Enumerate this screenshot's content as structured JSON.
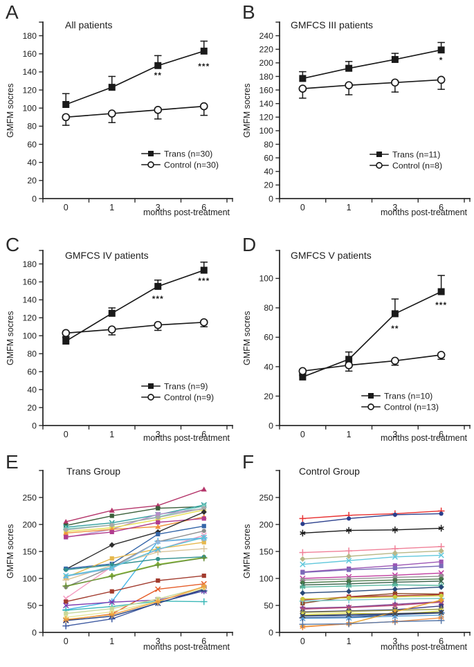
{
  "figure": {
    "background": "#ffffff",
    "text_color": "#1d1d1d",
    "axis_color": "#2a2a2a"
  },
  "chart_data": [
    {
      "letter": "A",
      "title": "All patients",
      "type": "line",
      "xlabel": "months post-treatment",
      "ylabel": "GMFM socres",
      "categories": [
        "0",
        "1",
        "3",
        "6"
      ],
      "ylim": [
        0,
        195
      ],
      "yticks": [
        0,
        20,
        40,
        60,
        80,
        100,
        120,
        140,
        160,
        180
      ],
      "grid": false,
      "legend_position": "inside lower right",
      "legend_xy": [
        205,
        222
      ],
      "series": [
        {
          "name": "Trans (n=30)",
          "color": "#1a1a1a",
          "marker": "square",
          "values": [
            104,
            123,
            147,
            163
          ],
          "err": [
            12,
            12,
            11,
            11
          ],
          "err_dir": "up"
        },
        {
          "name": "Control (n=30)",
          "color": "#1a1a1a",
          "marker": "circle-open",
          "values": [
            90,
            94,
            98,
            102
          ],
          "err": [
            9,
            10,
            10,
            10
          ],
          "err_dir": "down"
        }
      ],
      "annotations": [
        {
          "text": "**",
          "ci": 2,
          "y": 133
        },
        {
          "text": "***",
          "ci": 3,
          "y": 143
        }
      ]
    },
    {
      "letter": "B",
      "title": "GMFCS III patients",
      "type": "line",
      "xlabel": "months post-treatment",
      "ylabel": "GMFM socres",
      "categories": [
        "0",
        "1",
        "3",
        "6"
      ],
      "ylim": [
        0,
        260
      ],
      "yticks": [
        0,
        20,
        40,
        60,
        80,
        100,
        120,
        140,
        160,
        180,
        200,
        220,
        240
      ],
      "grid": false,
      "legend_position": "inside lower right",
      "legend_xy": [
        193,
        223
      ],
      "series": [
        {
          "name": "Trans (n=11)",
          "color": "#1a1a1a",
          "marker": "square",
          "values": [
            177,
            192,
            205,
            219
          ],
          "err": [
            10,
            10,
            9,
            11
          ],
          "err_dir": "up"
        },
        {
          "name": "Control (n=8)",
          "color": "#1a1a1a",
          "marker": "circle-open",
          "values": [
            162,
            167,
            171,
            175
          ],
          "err": [
            14,
            14,
            14,
            14
          ],
          "err_dir": "down"
        }
      ],
      "annotations": [
        {
          "text": "*",
          "ci": 3,
          "y": 200
        }
      ]
    },
    {
      "letter": "C",
      "title": "GMFCS IV patients",
      "type": "line",
      "xlabel": "months post-treatment",
      "ylabel": "GMFM socres",
      "categories": [
        "0",
        "1",
        "3",
        "6"
      ],
      "ylim": [
        0,
        195
      ],
      "yticks": [
        0,
        20,
        40,
        60,
        80,
        100,
        120,
        140,
        160,
        180
      ],
      "grid": false,
      "legend_position": "inside lower right",
      "legend_xy": [
        205,
        238
      ],
      "series": [
        {
          "name": "Trans (n=9)",
          "color": "#1a1a1a",
          "marker": "square",
          "values": [
            94,
            125,
            155,
            173
          ],
          "err": [
            4,
            6,
            7,
            9
          ],
          "err_dir": "up"
        },
        {
          "name": "Control (n=9)",
          "color": "#1a1a1a",
          "marker": "circle-open",
          "values": [
            103,
            107,
            112,
            115
          ],
          "err": [
            4,
            6,
            6,
            5
          ],
          "err_dir": "down"
        }
      ],
      "annotations": [
        {
          "text": "***",
          "ci": 2,
          "y": 138
        },
        {
          "text": "***",
          "ci": 3,
          "y": 158
        }
      ]
    },
    {
      "letter": "D",
      "title": "GMFCS V patients",
      "type": "line",
      "xlabel": "months post-treatment",
      "ylabel": "GMFM socres",
      "categories": [
        "0",
        "1",
        "3",
        "6"
      ],
      "ylim": [
        0,
        119
      ],
      "yticks": [
        0,
        20,
        40,
        60,
        80,
        100
      ],
      "grid": false,
      "legend_position": "inside lower right",
      "legend_xy": [
        181,
        252
      ],
      "series": [
        {
          "name": "Trans (n=10)",
          "color": "#1a1a1a",
          "marker": "square",
          "values": [
            33,
            45,
            76,
            91
          ],
          "err": [
            2,
            5,
            10,
            11
          ],
          "err_dir": "up"
        },
        {
          "name": "Control (n=13)",
          "color": "#1a1a1a",
          "marker": "circle-open",
          "values": [
            37,
            41,
            44,
            48
          ],
          "err": [
            3,
            4,
            3,
            3
          ],
          "err_dir": "down"
        }
      ],
      "annotations": [
        {
          "text": "**",
          "ci": 2,
          "y": 64
        },
        {
          "text": "***",
          "ci": 3,
          "y": 80
        }
      ]
    },
    {
      "letter": "E",
      "title": "Trans Group",
      "type": "line",
      "xlabel": "months post-treatment",
      "ylabel": "GMFM socres",
      "categories": [
        "0",
        "1",
        "3",
        "6"
      ],
      "ylim": [
        0,
        300
      ],
      "yticks": [
        0,
        50,
        100,
        150,
        200,
        250
      ],
      "grid": false,
      "legend_position": "none",
      "series": [
        {
          "c": "#b5366b",
          "m": "triangle",
          "v": [
            205,
            226,
            235,
            265
          ]
        },
        {
          "c": "#3a5f3a",
          "m": "square",
          "v": [
            198,
            216,
            230,
            233
          ]
        },
        {
          "c": "#2f9e9e",
          "m": "x",
          "v": [
            195,
            203,
            218,
            236
          ]
        },
        {
          "c": "#7fd4c8",
          "m": "star",
          "v": [
            192,
            199,
            214,
            234
          ]
        },
        {
          "c": "#b48cc8",
          "m": "square",
          "v": [
            176,
            191,
            219,
            229
          ]
        },
        {
          "c": "#e6df4e",
          "m": "square",
          "v": [
            187,
            194,
            209,
            227
          ]
        },
        {
          "c": "#f0953e",
          "m": "triangle",
          "v": [
            184,
            191,
            196,
            214
          ]
        },
        {
          "c": "#a8a8a8",
          "m": "circle",
          "v": [
            190,
            199,
            213,
            230
          ]
        },
        {
          "c": "#b03b8e",
          "m": "square",
          "v": [
            177,
            186,
            204,
            211
          ]
        },
        {
          "c": "#2f2f2f",
          "m": "diamond",
          "v": [
            117,
            162,
            186,
            223
          ]
        },
        {
          "c": "#3465a8",
          "m": "square",
          "v": [
            118,
            127,
            182,
            197
          ]
        },
        {
          "c": "#e6b84e",
          "m": "square",
          "v": [
            102,
            137,
            155,
            167
          ]
        },
        {
          "c": "#f49ac1",
          "m": "x",
          "v": [
            63,
            122,
            153,
            180
          ]
        },
        {
          "c": "#45b5e6",
          "m": "plus",
          "v": [
            42,
            57,
            169,
            175
          ]
        },
        {
          "c": "#d9c49a",
          "m": "plus",
          "v": [
            97,
            124,
            149,
            155
          ]
        },
        {
          "c": "#96c83c",
          "m": "diamond",
          "v": [
            85,
            105,
            126,
            139
          ]
        },
        {
          "c": "#8c8c8c",
          "m": "circle",
          "v": [
            84,
            121,
            168,
            188
          ]
        },
        {
          "c": "#2f8f8f",
          "m": "circle",
          "v": [
            116,
            125,
            136,
            140
          ]
        },
        {
          "c": "#a23b2e",
          "m": "square",
          "v": [
            57,
            76,
            96,
            105
          ]
        },
        {
          "c": "#e55c28",
          "m": "x",
          "v": [
            23,
            34,
            80,
            90
          ]
        },
        {
          "c": "#7c3bb0",
          "m": "x",
          "v": [
            50,
            56,
            60,
            77
          ]
        },
        {
          "c": "#3cb8b8",
          "m": "plus",
          "v": [
            41,
            48,
            58,
            57
          ]
        },
        {
          "c": "#c8d89a",
          "m": "square",
          "v": [
            35,
            44,
            62,
            84
          ]
        },
        {
          "c": "#3c58a0",
          "m": "plus",
          "v": [
            12,
            25,
            55,
            77
          ]
        },
        {
          "c": "#28407c",
          "m": "x",
          "v": [
            22,
            30,
            54,
            80
          ]
        },
        {
          "c": "#e6e69a",
          "m": "circle",
          "v": [
            28,
            38,
            58,
            82
          ]
        },
        {
          "c": "#f0a03c",
          "m": "star",
          "v": [
            24,
            33,
            57,
            85
          ]
        },
        {
          "c": "#90b8e0",
          "m": "triangle",
          "v": [
            104,
            118,
            168,
            174
          ]
        },
        {
          "c": "#6a8f3c",
          "m": "plus",
          "v": [
            86,
            104,
            125,
            138
          ]
        },
        {
          "c": "#55c0d8",
          "m": "x",
          "v": [
            105,
            120,
            154,
            176
          ]
        }
      ],
      "annotations": []
    },
    {
      "letter": "F",
      "title": "Control Group",
      "type": "line",
      "xlabel": "months post-treatment",
      "ylabel": "GMFM socres",
      "categories": [
        "0",
        "1",
        "3",
        "6"
      ],
      "ylim": [
        0,
        300
      ],
      "yticks": [
        0,
        50,
        100,
        150,
        200,
        250
      ],
      "grid": false,
      "legend_position": "none",
      "series": [
        {
          "c": "#e83030",
          "m": "plus",
          "v": [
            211,
            217,
            220,
            225
          ]
        },
        {
          "c": "#2b3f8c",
          "m": "circle",
          "v": [
            201,
            211,
            218,
            220
          ]
        },
        {
          "c": "#1a1a1a",
          "m": "star",
          "v": [
            184,
            189,
            190,
            193
          ]
        },
        {
          "c": "#f08098",
          "m": "plus",
          "v": [
            148,
            151,
            155,
            159
          ]
        },
        {
          "c": "#b8b888",
          "m": "diamond",
          "v": [
            136,
            141,
            147,
            151
          ]
        },
        {
          "c": "#62c8dc",
          "m": "x",
          "v": [
            126,
            133,
            140,
            143
          ]
        },
        {
          "c": "#9a55b4",
          "m": "square",
          "v": [
            112,
            118,
            124,
            131
          ]
        },
        {
          "c": "#7a6ab8",
          "m": "square",
          "v": [
            111,
            116,
            119,
            123
          ]
        },
        {
          "c": "#c03ca0",
          "m": "x",
          "v": [
            100,
            103,
            106,
            110
          ]
        },
        {
          "c": "#909090",
          "m": "square",
          "v": [
            97,
            99,
            102,
            104
          ]
        },
        {
          "c": "#4a7a4a",
          "m": "circle",
          "v": [
            92,
            95,
            97,
            99
          ]
        },
        {
          "c": "#386048",
          "m": "x",
          "v": [
            88,
            90,
            93,
            95
          ]
        },
        {
          "c": "#58b8a0",
          "m": "star",
          "v": [
            84,
            86,
            88,
            87
          ]
        },
        {
          "c": "#284878",
          "m": "diamond",
          "v": [
            73,
            76,
            80,
            84
          ]
        },
        {
          "c": "#8a4a28",
          "m": "square",
          "v": [
            54,
            66,
            72,
            71
          ]
        },
        {
          "c": "#b03030",
          "m": "square",
          "v": [
            60,
            66,
            68,
            70
          ]
        },
        {
          "c": "#78c8c8",
          "m": "plus",
          "v": [
            58,
            60,
            62,
            63
          ]
        },
        {
          "c": "#c8c83c",
          "m": "circle",
          "v": [
            62,
            64,
            66,
            68
          ]
        },
        {
          "c": "#804a98",
          "m": "diamond",
          "v": [
            45,
            47,
            52,
            57
          ]
        },
        {
          "c": "#b84a78",
          "m": "x",
          "v": [
            43,
            46,
            50,
            56
          ]
        },
        {
          "c": "#3c3c80",
          "m": "square",
          "v": [
            38,
            40,
            42,
            49
          ]
        },
        {
          "c": "#a0a048",
          "m": "star",
          "v": [
            37,
            39,
            41,
            43
          ]
        },
        {
          "c": "#e6e650",
          "m": "circle",
          "v": [
            33,
            36,
            33,
            40
          ]
        },
        {
          "c": "#3060b0",
          "m": "square",
          "v": [
            30,
            31,
            34,
            37
          ]
        },
        {
          "c": "#203878",
          "m": "plus",
          "v": [
            27,
            28,
            33,
            36
          ]
        },
        {
          "c": "#58a0d8",
          "m": "x",
          "v": [
            26,
            27,
            30,
            32
          ]
        },
        {
          "c": "#e6a030",
          "m": "diamond",
          "v": [
            11,
            16,
            38,
            60
          ]
        },
        {
          "c": "#f09048",
          "m": "star",
          "v": [
            10,
            16,
            20,
            27
          ]
        },
        {
          "c": "#5878a8",
          "m": "plus",
          "v": [
            15,
            16,
            20,
            22
          ]
        },
        {
          "c": "#484848",
          "m": "x",
          "v": [
            31,
            33,
            35,
            37
          ]
        }
      ],
      "annotations": []
    }
  ]
}
